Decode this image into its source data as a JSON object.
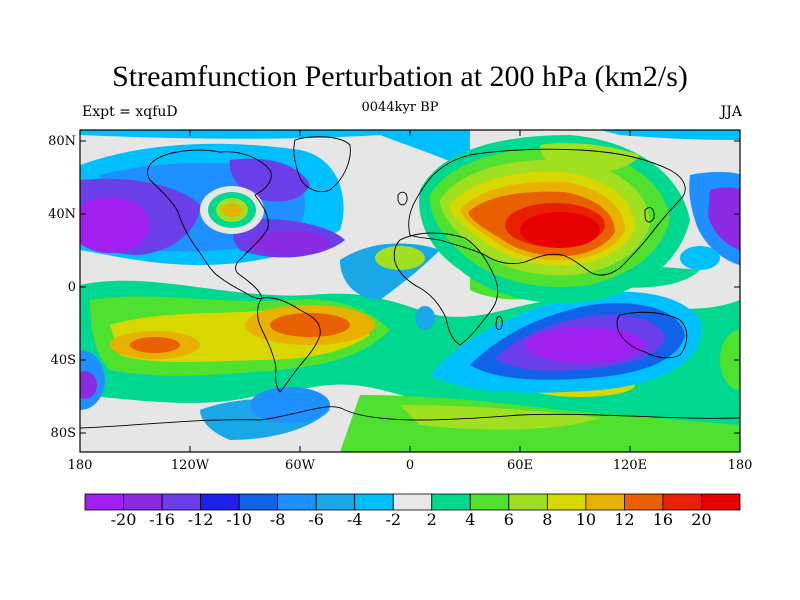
{
  "title": "Streamfunction Perturbation at 200 hPa (km2/s)",
  "left_string": "Expt = xqfuD",
  "center_string": "0044kyr BP",
  "right_string": "JJA",
  "axes": {
    "lat_labels": [
      "80N",
      "40N",
      "0",
      "40S",
      "80S"
    ],
    "lon_labels": [
      "180",
      "120W",
      "60W",
      "0",
      "60E",
      "120E",
      "180"
    ]
  },
  "colorbar": {
    "colors": [
      "#a020f0",
      "#8a2be2",
      "#6a3ee8",
      "#1e22e8",
      "#1063e8",
      "#1e90ff",
      "#1aa7e8",
      "#00bfff",
      "#e8e8e8",
      "#00d890",
      "#50e030",
      "#a0e020",
      "#d8d800",
      "#e8b000",
      "#e86000",
      "#e82000",
      "#e80000"
    ],
    "labels": [
      "-20",
      "-16",
      "-12",
      "-10",
      "-8",
      "-6",
      "-4",
      "-2",
      "2",
      "4",
      "6",
      "8",
      "10",
      "12",
      "16",
      "20"
    ]
  }
}
